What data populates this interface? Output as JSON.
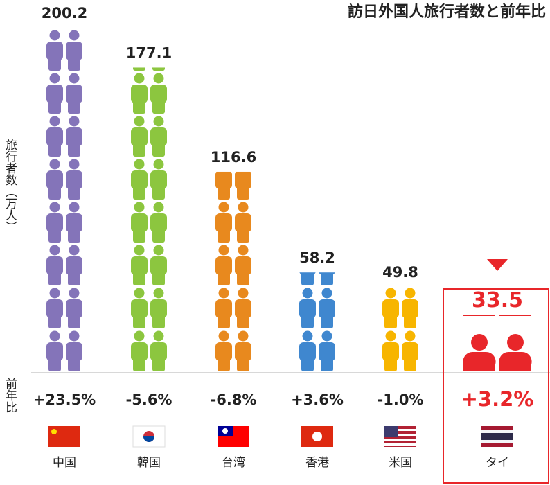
{
  "chart_data": {
    "type": "pictogram",
    "title": "訪日外国人旅行者数と前年比",
    "y_label": "旅行者数（万人）",
    "categories": [
      "中国",
      "韓国",
      "台湾",
      "香港",
      "米国",
      "タイ"
    ],
    "values": [
      200.2,
      177.1,
      116.6,
      58.2,
      49.8,
      33.5
    ],
    "colors": [
      "#8474b9",
      "#8cc63f",
      "#e8891e",
      "#3f87cf",
      "#f7b500",
      "#e8262a"
    ],
    "ylim": [
      0,
      200.2
    ],
    "yoy": {
      "name": "前年比",
      "values": [
        23.5,
        -5.6,
        -6.8,
        3.6,
        -1.0,
        3.2
      ],
      "value_labels": [
        "+23.5%",
        "-5.6%",
        "-6.8%",
        "+3.6%",
        "-1.0%",
        "+3.2%"
      ]
    }
  }
}
